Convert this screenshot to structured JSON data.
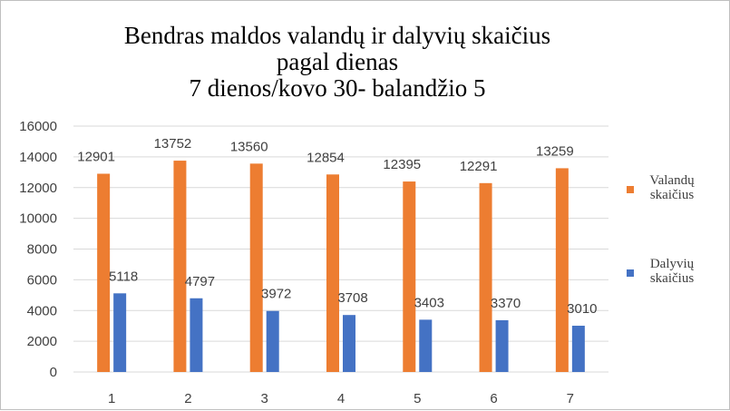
{
  "chart_data": {
    "type": "bar",
    "title_lines": [
      "Bendras maldos valandų ir dalyvių skaičius",
      "pagal dienas",
      "7 dienos/kovo 30- balandžio 5"
    ],
    "categories": [
      "1",
      "2",
      "3",
      "4",
      "5",
      "6",
      "7"
    ],
    "series": [
      {
        "name": "Valandų skaičius",
        "color": "#ed7d31",
        "values": [
          12901,
          13752,
          13560,
          12854,
          12395,
          12291,
          13259
        ]
      },
      {
        "name": "Dalyvių skaičius",
        "color": "#4472c4",
        "values": [
          5118,
          4797,
          3972,
          3708,
          3403,
          3370,
          3010
        ]
      }
    ],
    "ylim": [
      0,
      16000
    ],
    "yticks": [
      0,
      2000,
      4000,
      6000,
      8000,
      10000,
      12000,
      14000,
      16000
    ],
    "grid": true,
    "data_labels": true,
    "legend_position": "right"
  }
}
